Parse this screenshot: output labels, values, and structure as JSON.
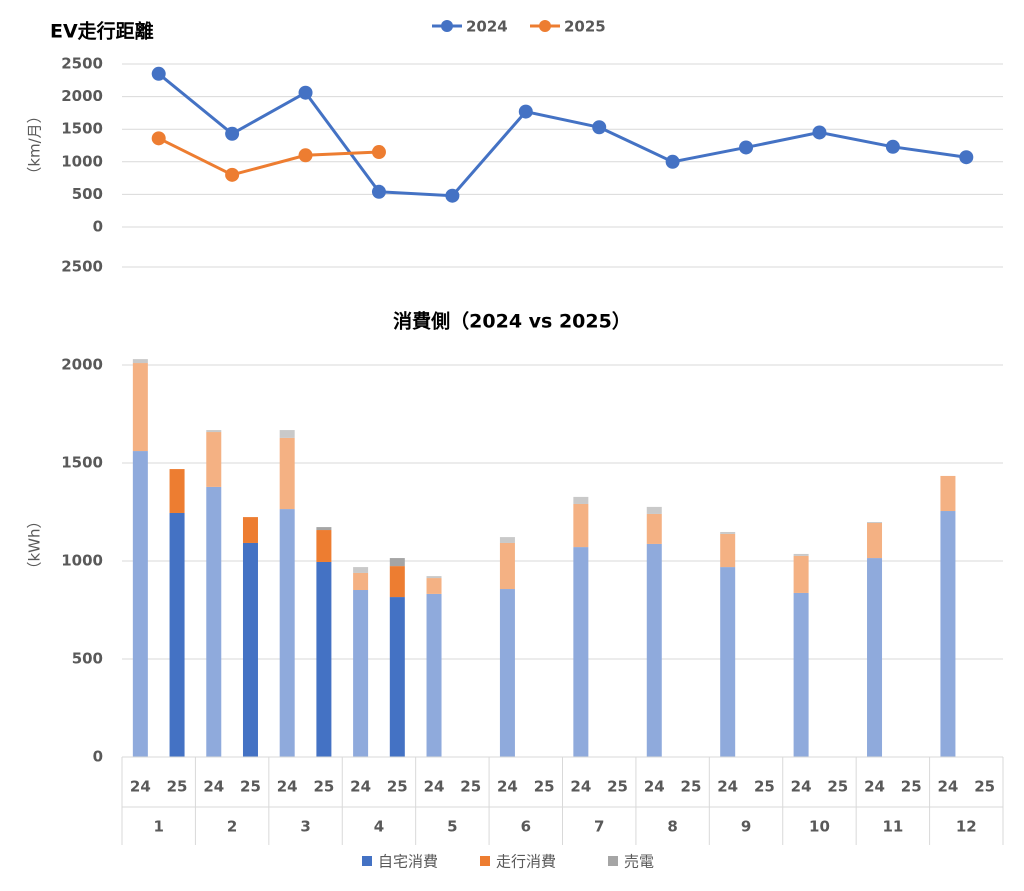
{
  "chart_data": [
    {
      "type": "line",
      "title": "EV走行距離",
      "y_label": "（km/月）",
      "categories": [
        null,
        null,
        null,
        null,
        null,
        null,
        null,
        null,
        null,
        null,
        null,
        null
      ],
      "series": [
        {
          "name": "2024",
          "color": "#4472c4",
          "values": [
            2350,
            1430,
            2060,
            540,
            480,
            1770,
            1530,
            1000,
            1220,
            1450,
            1230,
            1070
          ]
        },
        {
          "name": "2025",
          "color": "#ed7d31",
          "values": [
            1360,
            800,
            1100,
            1150,
            null,
            null,
            null,
            null,
            null,
            null,
            null,
            null
          ]
        }
      ],
      "ylim": [
        0,
        2500
      ],
      "yticks": [
        0,
        500,
        1000,
        1500,
        2000,
        2500
      ],
      "grid": true,
      "legend": "top"
    },
    {
      "type": "stacked_bar",
      "title": "消費側（2024 vs 2025）",
      "y_label": "（kWh）",
      "groups": [
        "1",
        "2",
        "3",
        "4",
        "5",
        "6",
        "7",
        "8",
        "9",
        "10",
        "11",
        "12"
      ],
      "categories": [
        "24",
        "25",
        "24",
        "25",
        "24",
        "25",
        "24",
        "25",
        "24",
        "25",
        "24",
        "25",
        "24",
        "25",
        "24",
        "25",
        "24",
        "25",
        "24",
        "25",
        "24",
        "25",
        "24",
        "25"
      ],
      "series": [
        {
          "name": "自宅消費",
          "color": "#4472c4",
          "light_color": "#8faadc",
          "values": [
            1561,
            1245,
            1378,
            1092,
            1265,
            995,
            852,
            816,
            832,
            null,
            857,
            null,
            1071,
            null,
            1087,
            null,
            969,
            null,
            837,
            null,
            1015,
            null,
            1255,
            null
          ]
        },
        {
          "name": "走行消費",
          "color": "#ed7d31",
          "light_color": "#f4b183",
          "values": [
            449,
            224,
            280,
            132,
            363,
            163,
            87,
            158,
            81,
            null,
            235,
            null,
            220,
            null,
            153,
            null,
            169,
            null,
            189,
            null,
            179,
            null,
            179,
            null
          ]
        },
        {
          "name": "売電",
          "color": "#a5a5a5",
          "light_color": "#c9c9c9",
          "values": [
            20,
            0,
            10,
            0,
            40,
            15,
            30,
            41,
            10,
            null,
            30,
            null,
            36,
            null,
            36,
            null,
            10,
            null,
            10,
            null,
            5,
            null,
            0,
            null
          ]
        }
      ],
      "ylim": [
        0,
        2500
      ],
      "yticks": [
        0,
        500,
        1000,
        1500,
        2000,
        2500
      ],
      "grid": true,
      "legend": "bottom"
    }
  ]
}
